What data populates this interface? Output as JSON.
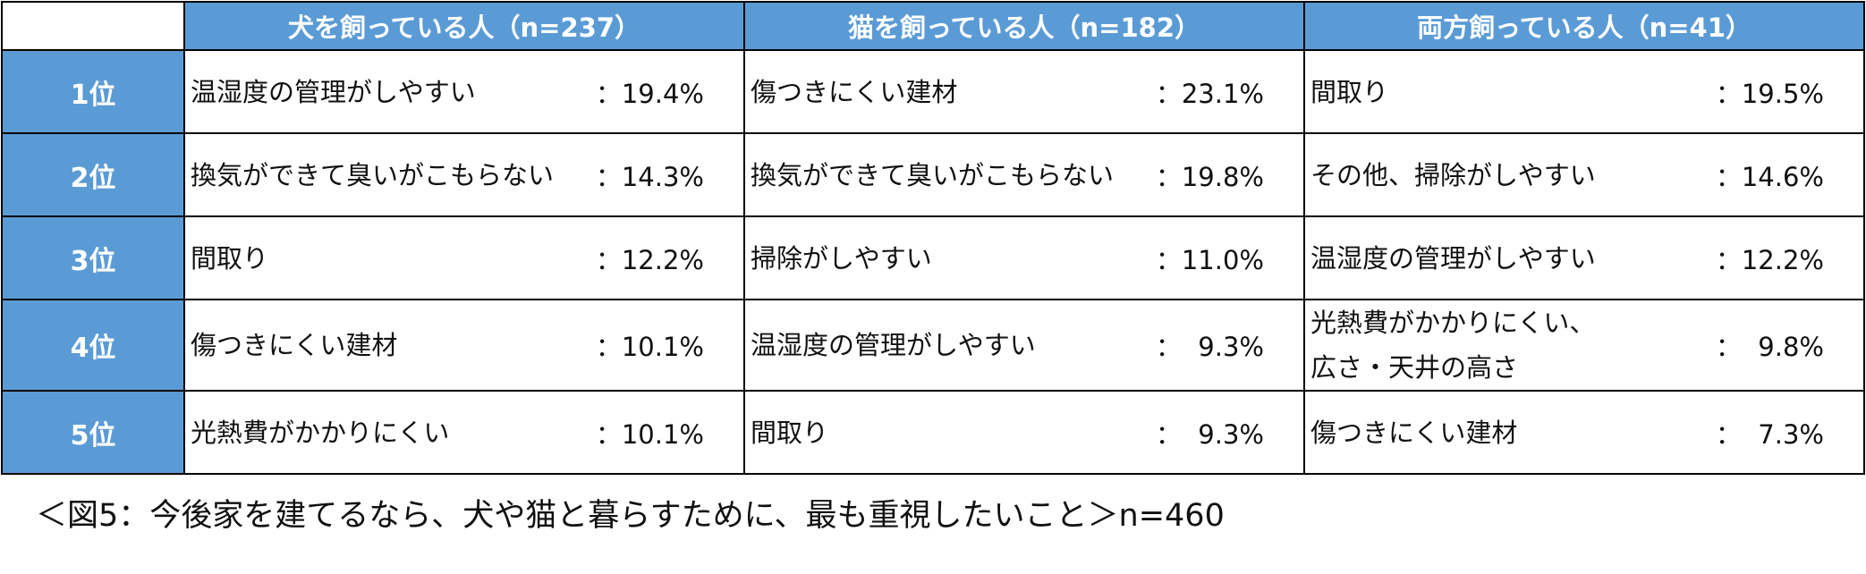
{
  "chart_data": {
    "type": "table",
    "caption": "＜図5：今後家を建てるなら、犬や猫と暮らすために、最も重視したいこと＞n=460",
    "columns": [
      {
        "header": "犬を飼っている人（n=237）",
        "rows": [
          {
            "item": [
              "温湿度の管理がしやすい"
            ],
            "value": "：19.4%"
          },
          {
            "item": [
              "換気ができて臭いがこもらない"
            ],
            "value": "：14.3%"
          },
          {
            "item": [
              "間取り"
            ],
            "value": "：12.2%"
          },
          {
            "item": [
              "傷つきにくい建材"
            ],
            "value": "：10.1%"
          },
          {
            "item": [
              "光熱費がかかりにくい"
            ],
            "value": "：10.1%"
          }
        ]
      },
      {
        "header": "猫を飼っている人（n=182）",
        "rows": [
          {
            "item": [
              "傷つきにくい建材"
            ],
            "value": "：23.1%"
          },
          {
            "item": [
              "換気ができて臭いがこもらない"
            ],
            "value": "：19.8%"
          },
          {
            "item": [
              "掃除がしやすい"
            ],
            "value": "：11.0%"
          },
          {
            "item": [
              "温湿度の管理がしやすい"
            ],
            "value": "：  9.3%"
          },
          {
            "item": [
              "間取り"
            ],
            "value": "：  9.3%"
          }
        ]
      },
      {
        "header": "両方飼っている人（n=41）",
        "rows": [
          {
            "item": [
              "間取り"
            ],
            "value": "：19.5%"
          },
          {
            "item": [
              "その他、掃除がしやすい"
            ],
            "value": "：14.6%"
          },
          {
            "item": [
              "温湿度の管理がしやすい"
            ],
            "value": "：12.2%"
          },
          {
            "item": [
              "光熱費がかかりにくい、",
              "広さ・天井の高さ"
            ],
            "value": "：  9.8%"
          },
          {
            "item": [
              "傷つきにくい建材"
            ],
            "value": "：  7.3%"
          }
        ]
      }
    ],
    "ranks": [
      "1位",
      "2位",
      "3位",
      "4位",
      "5位"
    ],
    "colors": {
      "header_bg": "#5b9bd5",
      "header_text": "#ffffff",
      "border": "#000000"
    }
  }
}
